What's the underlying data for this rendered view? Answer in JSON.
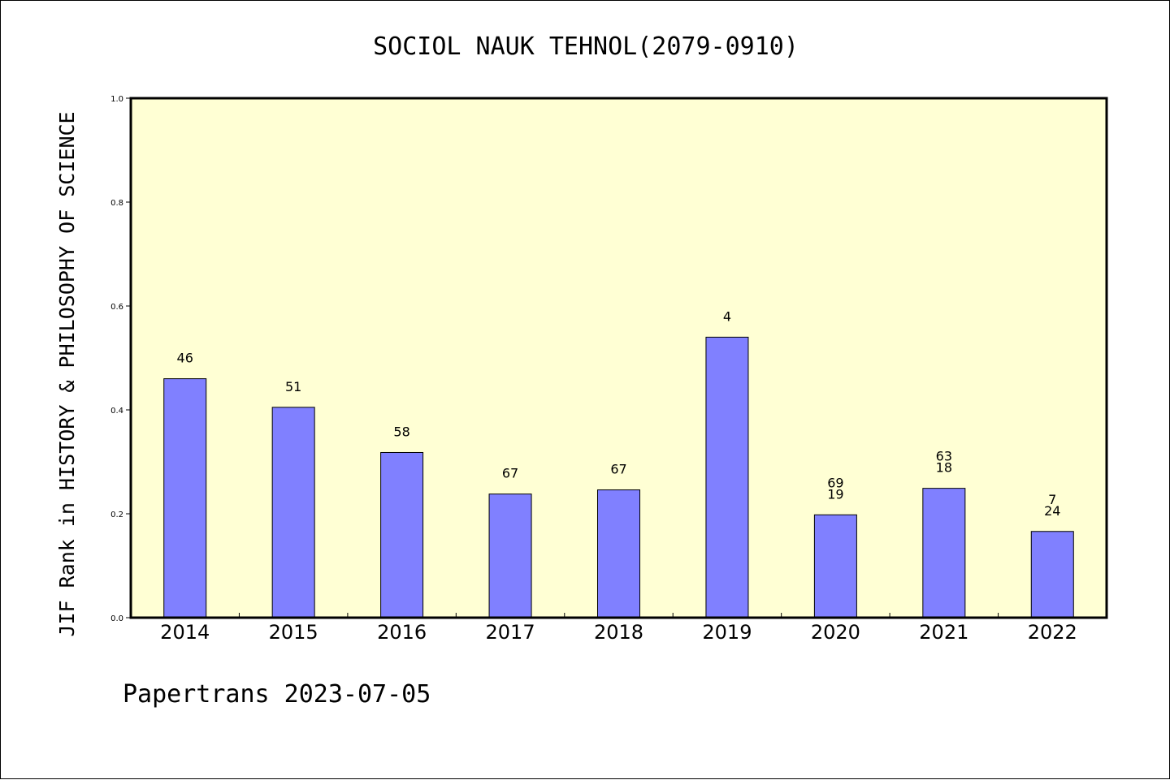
{
  "chart_data": {
    "type": "bar",
    "title": "SOCIOL NAUK TEHNOL(2079-0910)",
    "ylabel": "JIF Rank in HISTORY & PHILOSOPHY OF SCIENCE",
    "xlabel": "",
    "categories": [
      "2014",
      "2015",
      "2016",
      "2017",
      "2018",
      "2019",
      "2020",
      "2021",
      "2022"
    ],
    "values": [
      0.46,
      0.405,
      0.318,
      0.238,
      0.246,
      0.54,
      0.198,
      0.249,
      0.166
    ],
    "bar_labels": [
      [
        "46"
      ],
      [
        "51"
      ],
      [
        "58"
      ],
      [
        "67"
      ],
      [
        "67"
      ],
      [
        "4"
      ],
      [
        "69",
        "19"
      ],
      [
        "63",
        "18"
      ],
      [
        "7",
        "24"
      ]
    ],
    "ylim": [
      0,
      1.0
    ],
    "yticks": [
      "0.0",
      "0.2",
      "0.4",
      "0.6",
      "0.8",
      "1.0"
    ],
    "grid": false,
    "colors": {
      "bar": "#8080ff",
      "plot_background": "#ffffd4",
      "axes": "#000000"
    }
  },
  "footer": "Papertrans 2023-07-05"
}
